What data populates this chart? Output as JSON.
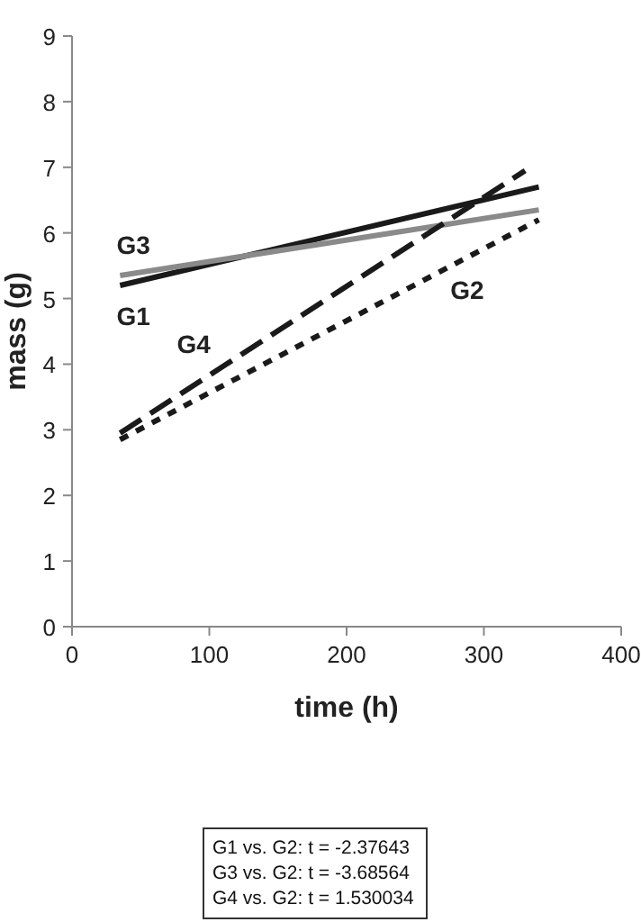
{
  "chart_data": {
    "type": "line",
    "xlabel": "time (h)",
    "ylabel": "mass (g)",
    "xlim": [
      0,
      400
    ],
    "xticks": [
      0,
      100,
      200,
      300,
      400
    ],
    "ylim": [
      0,
      9
    ],
    "yticks": [
      0,
      1,
      2,
      3,
      4,
      5,
      6,
      7,
      8,
      9
    ],
    "grid": false,
    "marker": "none",
    "series": [
      {
        "name": "G1",
        "color": "#1a1a1a",
        "x": [
          35,
          340
        ],
        "values": [
          5.2,
          6.7
        ],
        "line_style": "solid"
      },
      {
        "name": "G2",
        "color": "#1a1a1a",
        "x": [
          35,
          340
        ],
        "values": [
          2.85,
          6.2
        ],
        "line_style": "dotted"
      },
      {
        "name": "G3",
        "color": "#8a8a8a",
        "x": [
          35,
          340
        ],
        "values": [
          5.35,
          6.35
        ],
        "line_style": "solid"
      },
      {
        "name": "G4",
        "color": "#1a1a1a",
        "x": [
          35,
          330
        ],
        "values": [
          2.95,
          6.95
        ],
        "line_style": "dashed"
      }
    ],
    "annotations": [
      "G1 vs. G2: t = -2.37643",
      "G3 vs. G2: t = -3.68564",
      "G4 vs. G2: t = 1.530034"
    ]
  }
}
